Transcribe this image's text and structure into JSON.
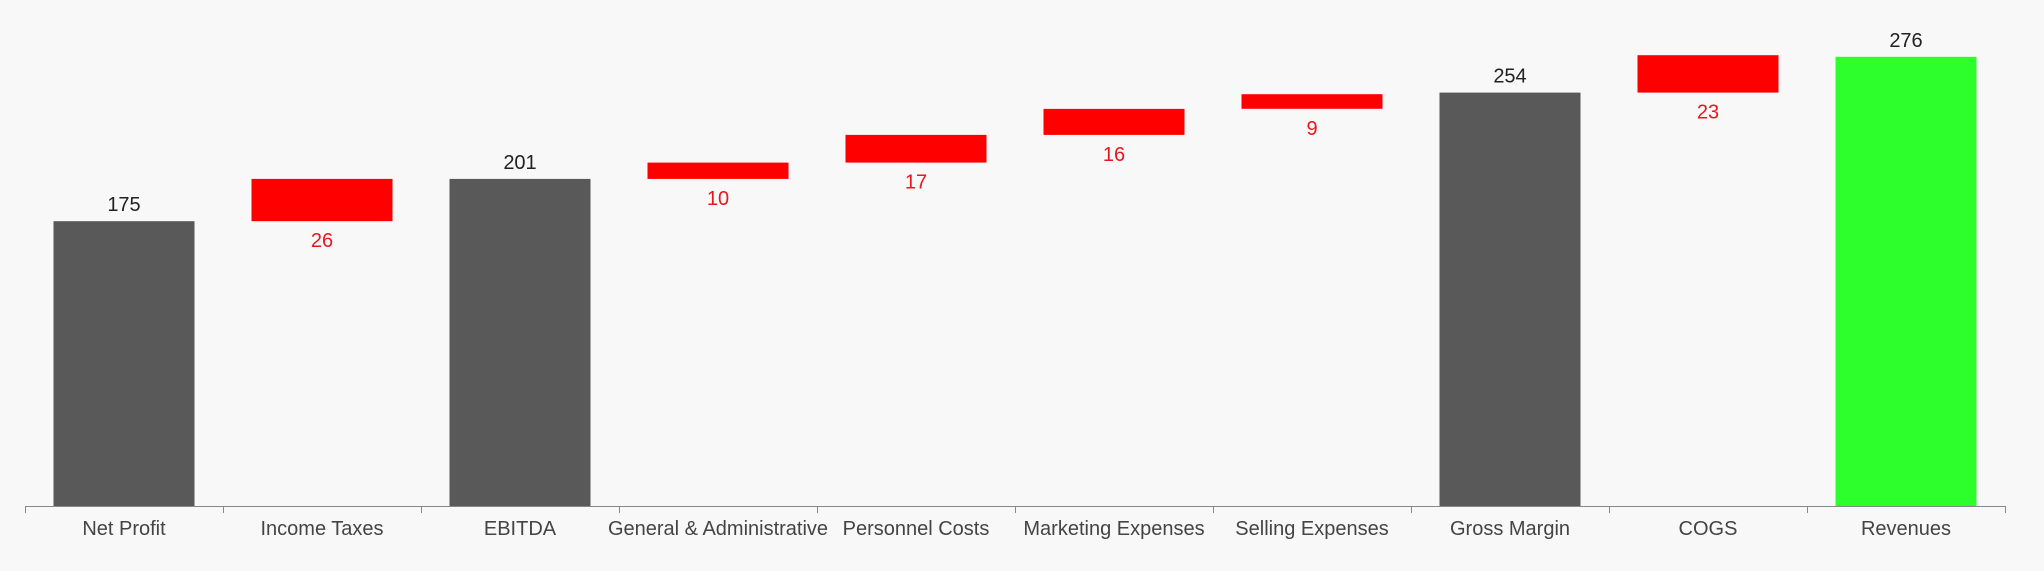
{
  "chart_data": {
    "type": "bar",
    "subtype": "waterfall",
    "title": "",
    "xlabel": "",
    "ylabel": "",
    "ylim": [
      0,
      276
    ],
    "grid": false,
    "legend": "none",
    "categories": [
      "Net Profit",
      "Income Taxes",
      "EBITDA",
      "General & Administrative",
      "Personnel Costs",
      "Marketing Expenses",
      "Selling Expenses",
      "Gross Margin",
      "COGS",
      "Revenues"
    ],
    "bars": [
      {
        "label": "Net Profit",
        "kind": "total",
        "start": 0,
        "end": 175,
        "value_label": "175"
      },
      {
        "label": "Income Taxes",
        "kind": "decrease",
        "start": 175,
        "end": 201,
        "value_label": "26"
      },
      {
        "label": "EBITDA",
        "kind": "total",
        "start": 0,
        "end": 201,
        "value_label": "201"
      },
      {
        "label": "General & Administrative",
        "kind": "decrease",
        "start": 201,
        "end": 211,
        "value_label": "10"
      },
      {
        "label": "Personnel Costs",
        "kind": "decrease",
        "start": 211,
        "end": 228,
        "value_label": "17"
      },
      {
        "label": "Marketing Expenses",
        "kind": "decrease",
        "start": 228,
        "end": 244,
        "value_label": "16"
      },
      {
        "label": "Selling Expenses",
        "kind": "decrease",
        "start": 244,
        "end": 253,
        "value_label": "9"
      },
      {
        "label": "Gross Margin",
        "kind": "total",
        "start": 0,
        "end": 254,
        "value_label": "254"
      },
      {
        "label": "COGS",
        "kind": "decrease",
        "start": 254,
        "end": 277,
        "value_label": "23"
      },
      {
        "label": "Revenues",
        "kind": "revenue",
        "start": 0,
        "end": 276,
        "value_label": "276"
      }
    ],
    "colors": {
      "total": "#595959",
      "decrease": "#ff0000",
      "revenue": "#2dff2d",
      "total_label": "#222222",
      "decrease_label": "#e8161d",
      "axis": "#888888",
      "tick_text": "#444444"
    }
  }
}
